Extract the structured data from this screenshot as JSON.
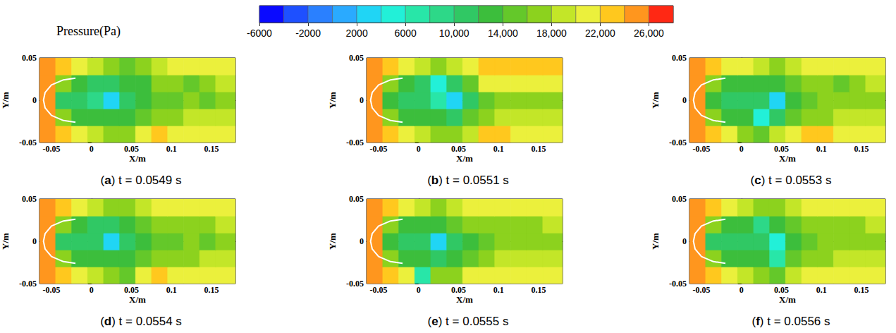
{
  "chart_data": {
    "type": "contour",
    "title": "Pressure(Pa)",
    "colorbar": {
      "range": [
        -6000,
        28000
      ],
      "levels": [
        -6000,
        -4000,
        -2000,
        0,
        2000,
        4000,
        6000,
        8000,
        10000,
        12000,
        14000,
        16000,
        18000,
        20000,
        22000,
        24000,
        26000,
        28000
      ],
      "colors": [
        "#0a0aff",
        "#1e50ff",
        "#2a80ff",
        "#2aaaff",
        "#20d5f5",
        "#22f0d8",
        "#28e6a8",
        "#2dd888",
        "#30c864",
        "#3cbe3c",
        "#64c82a",
        "#8cd21e",
        "#c3e628",
        "#ebf03c",
        "#ffc81e",
        "#ff961e",
        "#ff2814"
      ],
      "ticks": [
        -6000,
        -2000,
        2000,
        6000,
        {
          "value": 10000,
          "label": "10,000"
        },
        {
          "value": 14000,
          "label": "14,000"
        },
        {
          "value": 18000,
          "label": "18,000"
        },
        {
          "value": 22000,
          "label": "22,000"
        },
        {
          "value": 26000,
          "label": "26,000"
        }
      ]
    },
    "x_label": "X/m",
    "y_label": "Y/m",
    "xlim": [
      -0.065,
      0.18
    ],
    "ylim": [
      -0.05,
      0.05
    ],
    "xticks": [
      -0.05,
      0,
      0.05,
      0.1,
      0.15
    ],
    "yticks": [
      -0.05,
      0,
      0.05
    ],
    "x_edges": [
      -0.065,
      -0.045,
      -0.025,
      -0.005,
      0.015,
      0.035,
      0.055,
      0.075,
      0.095,
      0.115,
      0.135,
      0.155,
      0.18
    ],
    "y_edges": [
      -0.05,
      -0.03,
      -0.01,
      0.01,
      0.03,
      0.05
    ],
    "body": {
      "x": [
        -0.02,
        -0.035,
        -0.05,
        -0.058,
        -0.06,
        -0.058,
        -0.05,
        -0.035,
        -0.02
      ],
      "y": [
        0.026,
        0.024,
        0.018,
        0.009,
        0,
        -0.009,
        -0.018,
        -0.024,
        -0.026
      ]
    },
    "panels": [
      {
        "label": "(a)",
        "caption": "t = 0.0549 s",
        "cells": [
          [
            24000,
            22000,
            20000,
            18000,
            16000,
            16000,
            20000,
            22000,
            20000,
            20000,
            20000,
            20000
          ],
          [
            24000,
            16000,
            12000,
            12000,
            12000,
            12000,
            14000,
            16000,
            16000,
            18000,
            18000,
            18000
          ],
          [
            24000,
            10000,
            10000,
            8000,
            2000,
            10000,
            12000,
            14000,
            14000,
            16000,
            14000,
            16000
          ],
          [
            24000,
            16000,
            12000,
            10000,
            10000,
            12000,
            12000,
            16000,
            16000,
            14000,
            16000,
            18000
          ],
          [
            24000,
            22000,
            20000,
            18000,
            16000,
            14000,
            16000,
            18000,
            20000,
            20000,
            20000,
            20000
          ]
        ]
      },
      {
        "label": "(b)",
        "caption": "t = 0.0551 s",
        "cells": [
          [
            24000,
            22000,
            20000,
            18000,
            16000,
            16000,
            18000,
            22000,
            22000,
            20000,
            20000,
            20000
          ],
          [
            24000,
            16000,
            12000,
            12000,
            12000,
            10000,
            14000,
            16000,
            18000,
            18000,
            18000,
            18000
          ],
          [
            24000,
            12000,
            10000,
            10000,
            6000,
            2000,
            10000,
            14000,
            16000,
            16000,
            16000,
            16000
          ],
          [
            24000,
            16000,
            12000,
            10000,
            4000,
            10000,
            14000,
            20000,
            20000,
            20000,
            20000,
            20000
          ],
          [
            24000,
            22000,
            20000,
            18000,
            16000,
            18000,
            20000,
            22000,
            22000,
            22000,
            22000,
            22000
          ]
        ]
      },
      {
        "label": "(c)",
        "caption": "t = 0.0553 s",
        "cells": [
          [
            24000,
            22000,
            20000,
            16000,
            14000,
            18000,
            20000,
            22000,
            22000,
            20000,
            20000,
            20000
          ],
          [
            24000,
            16000,
            12000,
            12000,
            4000,
            10000,
            14000,
            16000,
            16000,
            18000,
            18000,
            18000
          ],
          [
            24000,
            12000,
            10000,
            10000,
            10000,
            2000,
            12000,
            14000,
            16000,
            16000,
            16000,
            16000
          ],
          [
            24000,
            16000,
            12000,
            12000,
            12000,
            12000,
            14000,
            16000,
            16000,
            14000,
            16000,
            18000
          ],
          [
            24000,
            22000,
            20000,
            20000,
            18000,
            16000,
            18000,
            20000,
            20000,
            20000,
            20000,
            20000
          ]
        ]
      },
      {
        "label": "(d)",
        "caption": "t = 0.0554 s",
        "cells": [
          [
            24000,
            22000,
            20000,
            18000,
            16000,
            14000,
            20000,
            22000,
            20000,
            20000,
            20000,
            20000
          ],
          [
            24000,
            16000,
            12000,
            12000,
            12000,
            12000,
            14000,
            16000,
            16000,
            16000,
            18000,
            18000
          ],
          [
            24000,
            10000,
            10000,
            10000,
            2000,
            10000,
            12000,
            14000,
            14000,
            16000,
            14000,
            16000
          ],
          [
            24000,
            16000,
            12000,
            10000,
            10000,
            12000,
            14000,
            16000,
            16000,
            16000,
            16000,
            18000
          ],
          [
            24000,
            22000,
            20000,
            18000,
            16000,
            16000,
            18000,
            20000,
            20000,
            20000,
            20000,
            20000
          ]
        ]
      },
      {
        "label": "(e)",
        "caption": "t = 0.0555 s",
        "cells": [
          [
            24000,
            22000,
            20000,
            6000,
            16000,
            16000,
            20000,
            20000,
            20000,
            20000,
            20000,
            20000
          ],
          [
            24000,
            16000,
            12000,
            12000,
            10000,
            12000,
            14000,
            16000,
            18000,
            18000,
            18000,
            18000
          ],
          [
            24000,
            12000,
            10000,
            10000,
            2000,
            10000,
            12000,
            14000,
            16000,
            16000,
            16000,
            16000
          ],
          [
            24000,
            16000,
            12000,
            12000,
            12000,
            14000,
            16000,
            16000,
            16000,
            16000,
            16000,
            18000
          ],
          [
            24000,
            22000,
            20000,
            18000,
            16000,
            18000,
            20000,
            20000,
            20000,
            20000,
            20000,
            20000
          ]
        ]
      },
      {
        "label": "(f)",
        "caption": "t = 0.0556 s",
        "cells": [
          [
            24000,
            22000,
            20000,
            18000,
            16000,
            14000,
            18000,
            20000,
            20000,
            20000,
            20000,
            20000
          ],
          [
            24000,
            16000,
            12000,
            12000,
            12000,
            6000,
            14000,
            16000,
            16000,
            18000,
            18000,
            18000
          ],
          [
            24000,
            10000,
            10000,
            10000,
            10000,
            4000,
            12000,
            14000,
            16000,
            16000,
            16000,
            16000
          ],
          [
            24000,
            16000,
            12000,
            12000,
            8000,
            12000,
            14000,
            16000,
            16000,
            16000,
            16000,
            18000
          ],
          [
            24000,
            22000,
            20000,
            18000,
            16000,
            16000,
            18000,
            20000,
            20000,
            20000,
            20000,
            20000
          ]
        ]
      }
    ]
  }
}
